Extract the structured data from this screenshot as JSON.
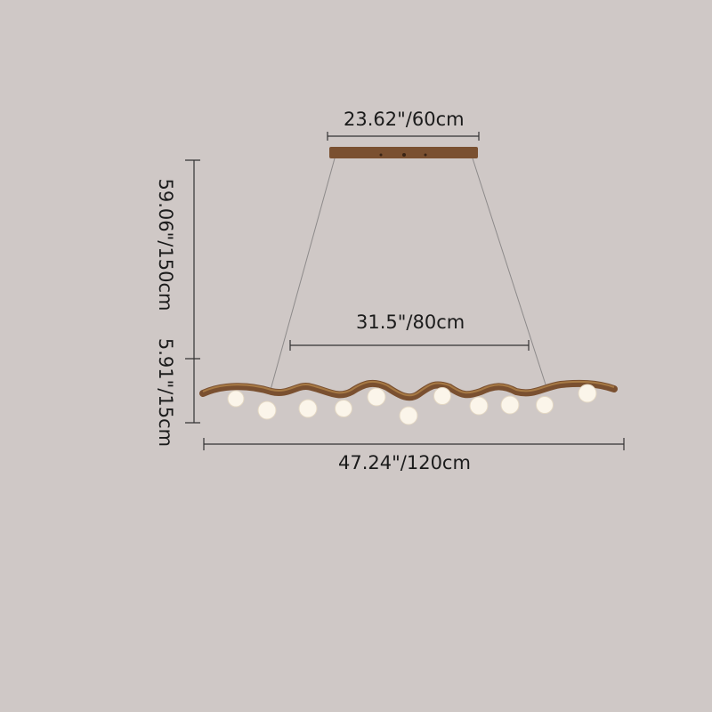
{
  "dimensions": {
    "canopy_width": "23.62\"/60cm",
    "cable_span": "31.5\"/80cm",
    "overall_length": "47.24\"/120cm",
    "max_drop_height": "59.06\"/150cm",
    "fixture_height": "5.91\"/15cm"
  },
  "colors": {
    "background": "#cfc8c6",
    "wood": "#7a5030",
    "bulb": "#fbf5ea",
    "dimension_line": "#333333"
  }
}
